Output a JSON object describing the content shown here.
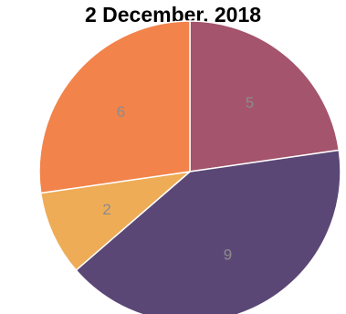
{
  "chart_data": {
    "type": "pie",
    "title": "2 December, 2018",
    "slices": [
      {
        "label": "5",
        "value": 5,
        "color": "#a4546c"
      },
      {
        "label": "9",
        "value": 9,
        "color": "#5b4776"
      },
      {
        "label": "2",
        "value": 2,
        "color": "#eeac57"
      },
      {
        "label": "6",
        "value": 6,
        "color": "#f2834b"
      }
    ],
    "start_angle_deg": 0,
    "direction": "clockwise",
    "label_color": "#8c8c8c",
    "separator_color": "#ffffff",
    "legend": "none"
  }
}
